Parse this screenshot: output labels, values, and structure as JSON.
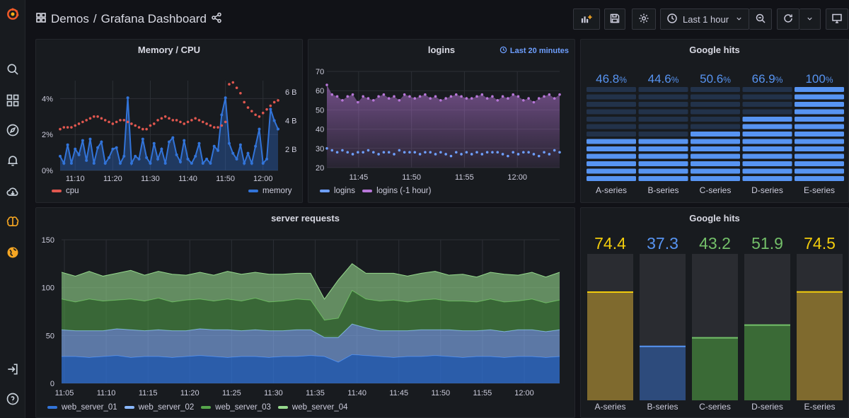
{
  "breadcrumb": {
    "parent": "Demos",
    "separator": "/",
    "title": "Grafana Dashboard"
  },
  "toolbar": {
    "time_range": "Last 1 hour"
  },
  "sidebar": {
    "icons": [
      "grafana-logo-icon",
      "search-icon",
      "dashboards-icon",
      "explore-icon",
      "alerting-icon",
      "cloud-icon",
      "brain-icon",
      "globe-icon",
      "sign-in-icon",
      "help-icon"
    ]
  },
  "colors": {
    "bg": "#111217",
    "panel": "#181b1f",
    "red": "#e0574f",
    "blue": "#3274d9",
    "purple": "#b877d9",
    "lblue": "#8ab8ff",
    "green": "#56a64b",
    "lgreen": "#96d98d",
    "yellow": "#f2cc0c",
    "text": "#ccccdc"
  },
  "panels": {
    "mem_cpu": {
      "title": "Memory / CPU"
    },
    "logins": {
      "title": "logins",
      "link": "Last 20 minutes"
    },
    "ghits1": {
      "title": "Google hits"
    },
    "server": {
      "title": "server requests"
    },
    "ghits2": {
      "title": "Google hits"
    }
  },
  "chart_data": [
    {
      "id": "mem_cpu",
      "type": "line",
      "title": "Memory / CPU",
      "x": [
        "11:06",
        "11:07",
        "11:08",
        "11:09",
        "11:10",
        "11:11",
        "11:12",
        "11:13",
        "11:14",
        "11:15",
        "11:16",
        "11:17",
        "11:18",
        "11:19",
        "11:20",
        "11:21",
        "11:22",
        "11:23",
        "11:24",
        "11:25",
        "11:26",
        "11:27",
        "11:28",
        "11:29",
        "11:30",
        "11:31",
        "11:32",
        "11:33",
        "11:34",
        "11:35",
        "11:36",
        "11:37",
        "11:38",
        "11:39",
        "11:40",
        "11:41",
        "11:42",
        "11:43",
        "11:44",
        "11:45",
        "11:46",
        "11:47",
        "11:48",
        "11:49",
        "11:50",
        "11:51",
        "11:52",
        "11:53",
        "11:54",
        "11:55",
        "11:56",
        "11:57",
        "11:58",
        "11:59",
        "12:00",
        "12:01",
        "12:02",
        "12:03",
        "12:04"
      ],
      "xticks": [
        "11:10",
        "11:20",
        "11:30",
        "11:40",
        "11:50",
        "12:00"
      ],
      "y_left_ticks": [
        "0%",
        "2%",
        "4%"
      ],
      "y_right_ticks": [
        "2 B",
        "4 B",
        "6 B"
      ],
      "ylim_left": [
        0,
        5
      ],
      "ylim_right": [
        0.5,
        6.8
      ],
      "series": [
        {
          "name": "cpu",
          "axis": "left",
          "values": [
            2.3,
            2.4,
            2.4,
            2.4,
            2.5,
            2.6,
            2.7,
            2.8,
            2.9,
            3.0,
            3.0,
            2.9,
            2.8,
            2.7,
            2.6,
            2.7,
            2.8,
            2.8,
            2.7,
            2.6,
            2.5,
            2.4,
            2.3,
            2.3,
            2.5,
            2.6,
            2.8,
            2.9,
            3.0,
            2.9,
            2.8,
            2.8,
            2.7,
            2.6,
            2.7,
            2.8,
            2.9,
            2.8,
            2.7,
            2.6,
            2.5,
            2.4,
            2.4,
            2.5,
            2.7,
            4.8,
            4.9,
            4.6,
            4.3,
            3.8,
            3.5,
            3.3,
            3.1,
            3.0,
            3.2,
            3.4,
            3.6,
            3.8,
            3.9
          ]
        },
        {
          "name": "memory",
          "axis": "right",
          "values": [
            1.5,
            1.0,
            2.3,
            1.0,
            2.0,
            1.6,
            2.6,
            1.2,
            2.7,
            1.0,
            2.1,
            2.5,
            1.0,
            1.4,
            2.0,
            2.1,
            1.0,
            1.5,
            5.6,
            1.0,
            1.5,
            1.3,
            2.7,
            1.4,
            1.0,
            2.4,
            1.3,
            2.0,
            1.0,
            2.5,
            2.8,
            1.6,
            1.1,
            2.6,
            1.3,
            1.0,
            1.5,
            2.4,
            1.0,
            1.3,
            1.0,
            2.2,
            1.9,
            4.4,
            5.6,
            2.4,
            1.7,
            1.3,
            2.3,
            1.0,
            1.7,
            1.0,
            2.2,
            3.4,
            1.0,
            1.3,
            4.8,
            4.0,
            3.4
          ]
        }
      ]
    },
    {
      "id": "logins",
      "type": "line",
      "title": "logins",
      "x_start": "11:42",
      "x_end": "12:04",
      "xticks": [
        "11:45",
        "11:50",
        "11:55",
        "12:00"
      ],
      "yticks": [
        20,
        30,
        40,
        50,
        60,
        70
      ],
      "ylim": [
        20,
        70
      ],
      "series": [
        {
          "name": "logins",
          "values": [
            30,
            29,
            28,
            29,
            28,
            27,
            28,
            28,
            29,
            28,
            27,
            28,
            28,
            27,
            29,
            28,
            28,
            28,
            27,
            28,
            28,
            27,
            28,
            27,
            26,
            28,
            27,
            28,
            27,
            28,
            27,
            28,
            28,
            28,
            27,
            26,
            28,
            27,
            28,
            28,
            27,
            26,
            28,
            27,
            29,
            28
          ]
        },
        {
          "name": "logins (-1 hour)",
          "values": [
            63,
            58,
            57,
            55,
            57,
            58,
            54,
            57,
            56,
            55,
            57,
            58,
            56,
            57,
            55,
            58,
            57,
            56,
            57,
            58,
            56,
            57,
            55,
            56,
            57,
            58,
            57,
            56,
            56,
            57,
            58,
            56,
            57,
            55,
            57,
            56,
            58,
            57,
            55,
            56,
            54,
            56,
            57,
            58,
            56,
            58
          ]
        }
      ]
    },
    {
      "id": "ghits1",
      "type": "bar",
      "title": "Google hits",
      "categories": [
        "A-series",
        "B-series",
        "C-series",
        "D-series",
        "E-series"
      ],
      "values": [
        46.8,
        44.6,
        50.6,
        66.9,
        100
      ],
      "labels": [
        "46.8%",
        "44.6%",
        "50.6%",
        "66.9%",
        "100%"
      ]
    },
    {
      "id": "server",
      "type": "area",
      "title": "server requests",
      "xticks": [
        "11:05",
        "11:10",
        "11:15",
        "11:20",
        "11:25",
        "11:30",
        "11:35",
        "11:40",
        "11:45",
        "11:50",
        "11:55",
        "12:00"
      ],
      "yticks": [
        0,
        50,
        100,
        150
      ],
      "ylim": [
        0,
        150
      ],
      "stacked": true,
      "series": [
        {
          "name": "web_server_01",
          "values": [
            28,
            28,
            27,
            28,
            29,
            27,
            28,
            28,
            27,
            28,
            29,
            28,
            27,
            28,
            28,
            27,
            28,
            28,
            29,
            28,
            22,
            30,
            29,
            28,
            27,
            28,
            28,
            29,
            28,
            27,
            28,
            28,
            27,
            28,
            28,
            27,
            28
          ]
        },
        {
          "name": "web_server_02",
          "values": [
            28,
            27,
            28,
            27,
            28,
            29,
            27,
            28,
            28,
            27,
            28,
            28,
            29,
            27,
            28,
            28,
            27,
            28,
            27,
            20,
            26,
            32,
            29,
            27,
            28,
            27,
            28,
            27,
            28,
            28,
            27,
            28,
            27,
            28,
            28,
            27,
            28
          ]
        },
        {
          "name": "web_server_03",
          "values": [
            32,
            30,
            33,
            31,
            30,
            32,
            31,
            33,
            30,
            32,
            31,
            30,
            32,
            31,
            33,
            30,
            31,
            32,
            31,
            18,
            20,
            35,
            30,
            31,
            32,
            30,
            31,
            32,
            30,
            31,
            30,
            32,
            31,
            30,
            32,
            30,
            31
          ]
        },
        {
          "name": "web_server_04",
          "values": [
            28,
            27,
            29,
            26,
            28,
            30,
            27,
            28,
            29,
            26,
            28,
            27,
            29,
            28,
            27,
            29,
            28,
            27,
            28,
            22,
            40,
            28,
            27,
            29,
            28,
            27,
            28,
            29,
            27,
            28,
            26,
            28,
            29,
            27,
            28,
            27,
            29
          ]
        }
      ]
    },
    {
      "id": "ghits2",
      "type": "bar",
      "title": "Google hits",
      "categories": [
        "A-series",
        "B-series",
        "C-series",
        "D-series",
        "E-series"
      ],
      "values": [
        74.4,
        37.3,
        43.2,
        51.9,
        74.5
      ],
      "max": 100
    }
  ]
}
